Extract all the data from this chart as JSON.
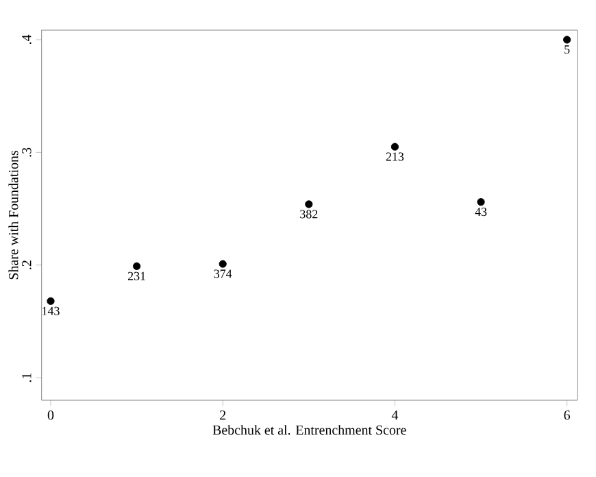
{
  "chart_data": {
    "type": "scatter",
    "xlabel": "Bebchuk et al. Entrenchment Score",
    "ylabel": "Share with Foundations",
    "x": [
      0,
      1,
      2,
      3,
      4,
      5,
      6
    ],
    "series": [
      {
        "color": "#000000",
        "values": [
          0.168,
          0.199,
          0.201,
          0.254,
          0.305,
          0.256,
          0.4
        ]
      }
    ],
    "marker": "circle",
    "xlim": [
      -0.106,
      6.12
    ],
    "ylim": [
      0.08,
      0.4085
    ],
    "xticks": [
      0,
      2,
      4,
      6
    ],
    "yticks": [
      {
        "value": 0.1,
        "label": ".1"
      },
      {
        "value": 0.2,
        "label": ".2"
      },
      {
        "value": 0.3,
        "label": ".3"
      },
      {
        "value": 0.4,
        "label": ".4"
      }
    ],
    "grid": false,
    "annotations": [
      {
        "text": "143",
        "x": 0,
        "y": 0.168
      },
      {
        "text": "231",
        "x": 1,
        "y": 0.199
      },
      {
        "text": "374",
        "x": 2,
        "y": 0.201
      },
      {
        "text": "382",
        "x": 3,
        "y": 0.254
      },
      {
        "text": "213",
        "x": 4,
        "y": 0.305
      },
      {
        "text": "43",
        "x": 5,
        "y": 0.256
      },
      {
        "text": "5",
        "x": 6,
        "y": 0.4
      }
    ]
  }
}
